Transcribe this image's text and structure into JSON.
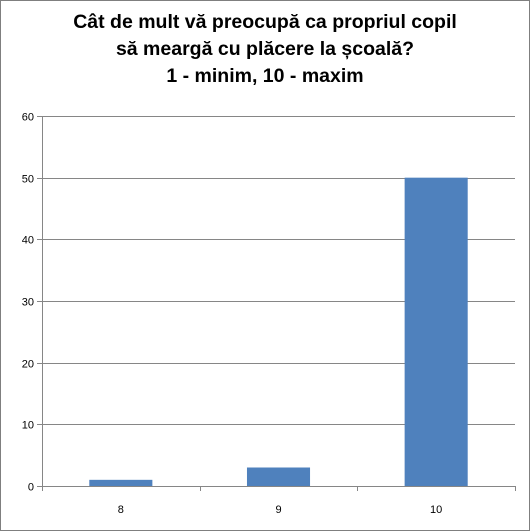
{
  "chart_data": {
    "type": "bar",
    "title_lines": [
      "Cât de mult vă preocupă ca propriul copil",
      "să meargă cu plăcere la școală?",
      "1 - minim, 10 - maxim"
    ],
    "categories": [
      "8",
      "9",
      "10"
    ],
    "values": [
      1,
      3,
      50
    ],
    "ylim": [
      0,
      60
    ],
    "yticks": [
      "0",
      "10",
      "20",
      "30",
      "40",
      "50",
      "60"
    ],
    "xlabel": "",
    "ylabel": "",
    "grid": true,
    "legend": "none",
    "colors": {
      "bar": "#4f81bd",
      "grid": "#868686",
      "axis": "#868686"
    }
  }
}
